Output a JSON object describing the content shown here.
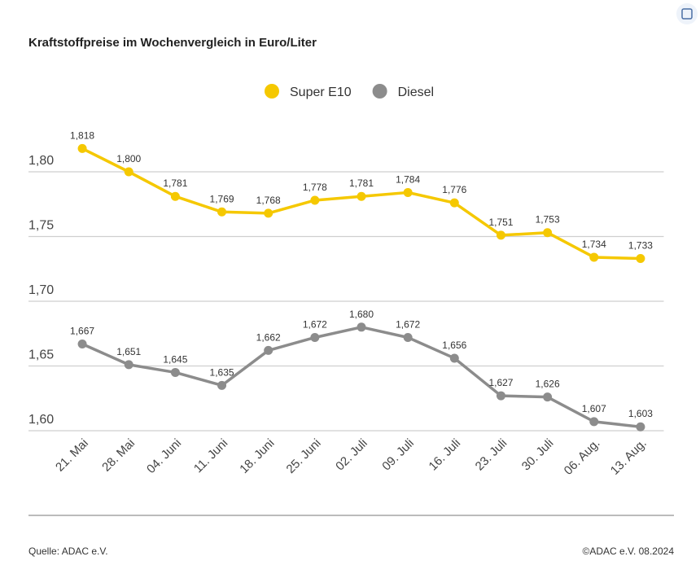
{
  "chart_data": {
    "type": "line",
    "title": "Kraftstoffpreise im Wochenvergleich in Euro/Liter",
    "categories": [
      "21. Mai",
      "28. Mai",
      "04. Juni",
      "11. Juni",
      "18. Juni",
      "25. Juni",
      "02. Juli",
      "09. Juli",
      "16. Juli",
      "23. Juli",
      "30. Juli",
      "06. Aug.",
      "13. Aug."
    ],
    "series": [
      {
        "name": "Super E10",
        "color": "#f5c800",
        "values": [
          1.818,
          1.8,
          1.781,
          1.769,
          1.768,
          1.778,
          1.781,
          1.784,
          1.776,
          1.751,
          1.753,
          1.734,
          1.733
        ],
        "value_labels": [
          "1,818",
          "1,800",
          "1,781",
          "1,769",
          "1,768",
          "1,778",
          "1,781",
          "1,784",
          "1,776",
          "1,751",
          "1,753",
          "1,734",
          "1,733"
        ]
      },
      {
        "name": "Diesel",
        "color": "#8c8c8c",
        "values": [
          1.667,
          1.651,
          1.645,
          1.635,
          1.662,
          1.672,
          1.68,
          1.672,
          1.656,
          1.627,
          1.626,
          1.607,
          1.603
        ],
        "value_labels": [
          "1,667",
          "1,651",
          "1,645",
          "1,635",
          "1,662",
          "1,672",
          "1,680",
          "1,672",
          "1,656",
          "1,627",
          "1,626",
          "1,607",
          "1,603"
        ]
      }
    ],
    "ylim": [
      1.6,
      1.84
    ],
    "yticks": [
      {
        "value": 1.6,
        "label": "1,60"
      },
      {
        "value": 1.65,
        "label": "1,65"
      },
      {
        "value": 1.7,
        "label": "1,70"
      },
      {
        "value": 1.75,
        "label": "1,75"
      },
      {
        "value": 1.8,
        "label": "1,80"
      }
    ],
    "grid": true,
    "legend": "top",
    "source": "Quelle: ADAC e.V.",
    "copyright": "©ADAC e.V. 08.2024"
  }
}
